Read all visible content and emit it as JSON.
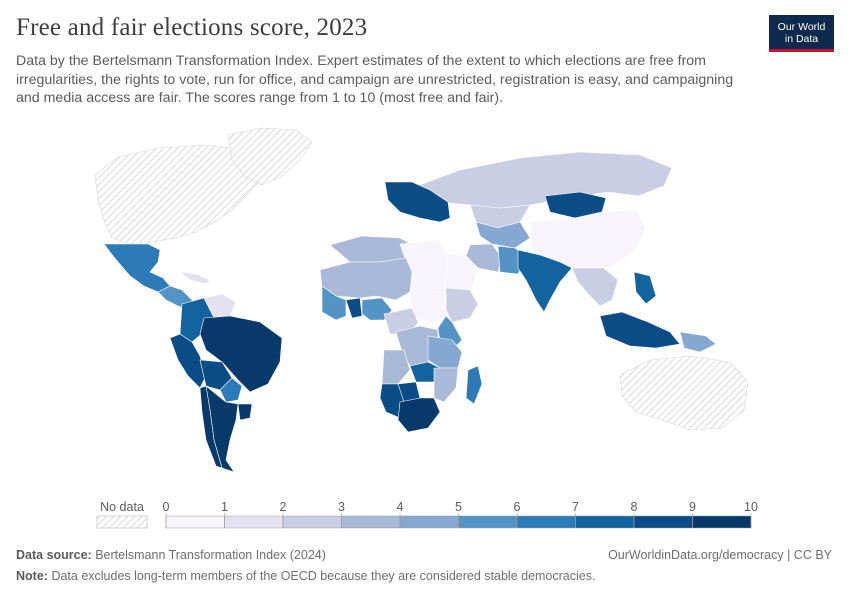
{
  "header": {
    "title": "Free and fair elections score, 2023",
    "subtitle": "Data by the Bertelsmann Transformation Index. Expert estimates of the extent to which elections are free from irregularities, the rights to vote, run for office, and campaign are unrestricted, registration is easy, and campaigning and media access are fair. The scores range from 1 to 10 (most free and fair).",
    "logo_line1": "Our World",
    "logo_line2": "in Data"
  },
  "legend": {
    "no_data_label": "No data",
    "ticks": [
      "0",
      "1",
      "2",
      "3",
      "4",
      "5",
      "6",
      "7",
      "8",
      "9",
      "10"
    ],
    "colors": [
      "#f7f4fb",
      "#e4e2f0",
      "#cbcde4",
      "#a9bad9",
      "#84a8d2",
      "#5393c5",
      "#2c7bb8",
      "#13649e",
      "#0a4c86",
      "#073a6b"
    ]
  },
  "footer": {
    "source_label": "Data source:",
    "source_value": "Bertelsmann Transformation Index (2024)",
    "url": "OurWorldinData.org/democracy | CC BY",
    "note_label": "Note:",
    "note_value": "Data excludes long-term members of the OECD because they are considered stable democracies."
  },
  "map_data": {
    "regions": [
      {
        "name": "North America (OECD)",
        "score": null
      },
      {
        "name": "Greenland",
        "score": null
      },
      {
        "name": "Mexico",
        "score": 6.5
      },
      {
        "name": "Central America",
        "score": 5.5
      },
      {
        "name": "Cuba",
        "score": 1
      },
      {
        "name": "Venezuela",
        "score": 1.5
      },
      {
        "name": "Colombia",
        "score": 7.5
      },
      {
        "name": "Ecuador / Peru",
        "score": 8
      },
      {
        "name": "Brazil",
        "score": 9
      },
      {
        "name": "Bolivia",
        "score": 8
      },
      {
        "name": "Paraguay",
        "score": 6.5
      },
      {
        "name": "Argentina",
        "score": 9.5
      },
      {
        "name": "Uruguay",
        "score": 9.5
      },
      {
        "name": "Chile",
        "score": 9.5
      },
      {
        "name": "Russia",
        "score": 2.5
      },
      {
        "name": "Eastern Europe",
        "score": 8
      },
      {
        "name": "Kazakhstan",
        "score": 2
      },
      {
        "name": "Central Asia",
        "score": 4
      },
      {
        "name": "Mongolia",
        "score": 8
      },
      {
        "name": "China",
        "score": 0.5
      },
      {
        "name": "Iran",
        "score": 3
      },
      {
        "name": "Arabian Peninsula",
        "score": 0.5
      },
      {
        "name": "Pakistan",
        "score": 5
      },
      {
        "name": "India",
        "score": 7
      },
      {
        "name": "Southeast Asia",
        "score": 2
      },
      {
        "name": "Indonesia",
        "score": 8
      },
      {
        "name": "Philippines",
        "score": 7
      },
      {
        "name": "Papua New Guinea",
        "score": 4
      },
      {
        "name": "Australia (OECD)",
        "score": null
      },
      {
        "name": "North Africa",
        "score": 3.5
      },
      {
        "name": "Libya / Egypt",
        "score": 0.5
      },
      {
        "name": "Sahel",
        "score": 3.5
      },
      {
        "name": "Sudan",
        "score": 0.5
      },
      {
        "name": "Ethiopia",
        "score": 2
      },
      {
        "name": "Kenya",
        "score": 5.5
      },
      {
        "name": "West Africa",
        "score": 5
      },
      {
        "name": "Ghana",
        "score": 8
      },
      {
        "name": "Nigeria",
        "score": 5
      },
      {
        "name": "Central Africa",
        "score": 2.5
      },
      {
        "name": "DR Congo",
        "score": 3.5
      },
      {
        "name": "Tanzania",
        "score": 4
      },
      {
        "name": "Angola",
        "score": 3.5
      },
      {
        "name": "Zambia",
        "score": 7
      },
      {
        "name": "Namibia",
        "score": 8.5
      },
      {
        "name": "Botswana",
        "score": 8
      },
      {
        "name": "South Africa",
        "score": 9
      },
      {
        "name": "Mozambique",
        "score": 3
      },
      {
        "name": "Madagascar",
        "score": 6
      }
    ]
  }
}
